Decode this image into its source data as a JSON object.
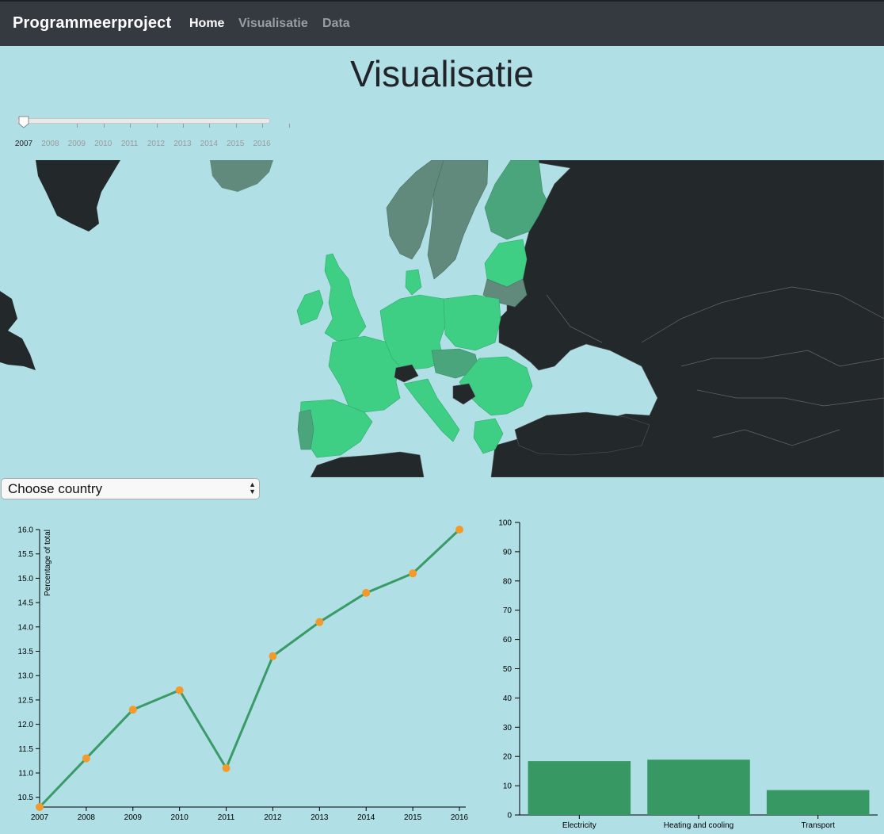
{
  "nav": {
    "brand": "Programmeerproject",
    "links": [
      "Home",
      "Visualisatie",
      "Data"
    ]
  },
  "page": {
    "title": "Visualisatie"
  },
  "slider": {
    "years": [
      "2007",
      "2008",
      "2009",
      "2010",
      "2011",
      "2012",
      "2013",
      "2014",
      "2015",
      "2016"
    ],
    "selected": "2007"
  },
  "select": {
    "label": "Choose country"
  },
  "colors": {
    "background": "#b0e0e6",
    "navbar": "#343a40",
    "land_dark": "#23292b",
    "green_bright": "#3ecf85",
    "green_mid": "#4aa57c",
    "green_gray": "#618a7c",
    "line": "#3a9a68",
    "dot": "#f59a2a",
    "bar": "#389864"
  },
  "chart_data": [
    {
      "type": "line",
      "title": "",
      "xlabel": "",
      "ylabel": "Percentage of total",
      "x": [
        "2007",
        "2008",
        "2009",
        "2010",
        "2011",
        "2012",
        "2013",
        "2014",
        "2015",
        "2016"
      ],
      "values": [
        10.3,
        11.3,
        12.3,
        12.7,
        11.1,
        13.4,
        14.1,
        14.7,
        15.1,
        16.0
      ],
      "yticks": [
        "10.5",
        "11.0",
        "11.5",
        "12.0",
        "12.5",
        "13.0",
        "13.5",
        "14.0",
        "14.5",
        "15.0",
        "15.5",
        "16.0"
      ],
      "ylim": [
        10.3,
        16.0
      ]
    },
    {
      "type": "bar",
      "title": "",
      "xlabel": "",
      "ylabel": "",
      "categories": [
        "Electricity",
        "Heating and cooling",
        "Transport"
      ],
      "values": [
        18.4,
        18.9,
        8.5
      ],
      "yticks": [
        "0",
        "10",
        "20",
        "30",
        "40",
        "50",
        "60",
        "70",
        "80",
        "90",
        "100"
      ],
      "ylim": [
        0,
        100
      ]
    }
  ]
}
